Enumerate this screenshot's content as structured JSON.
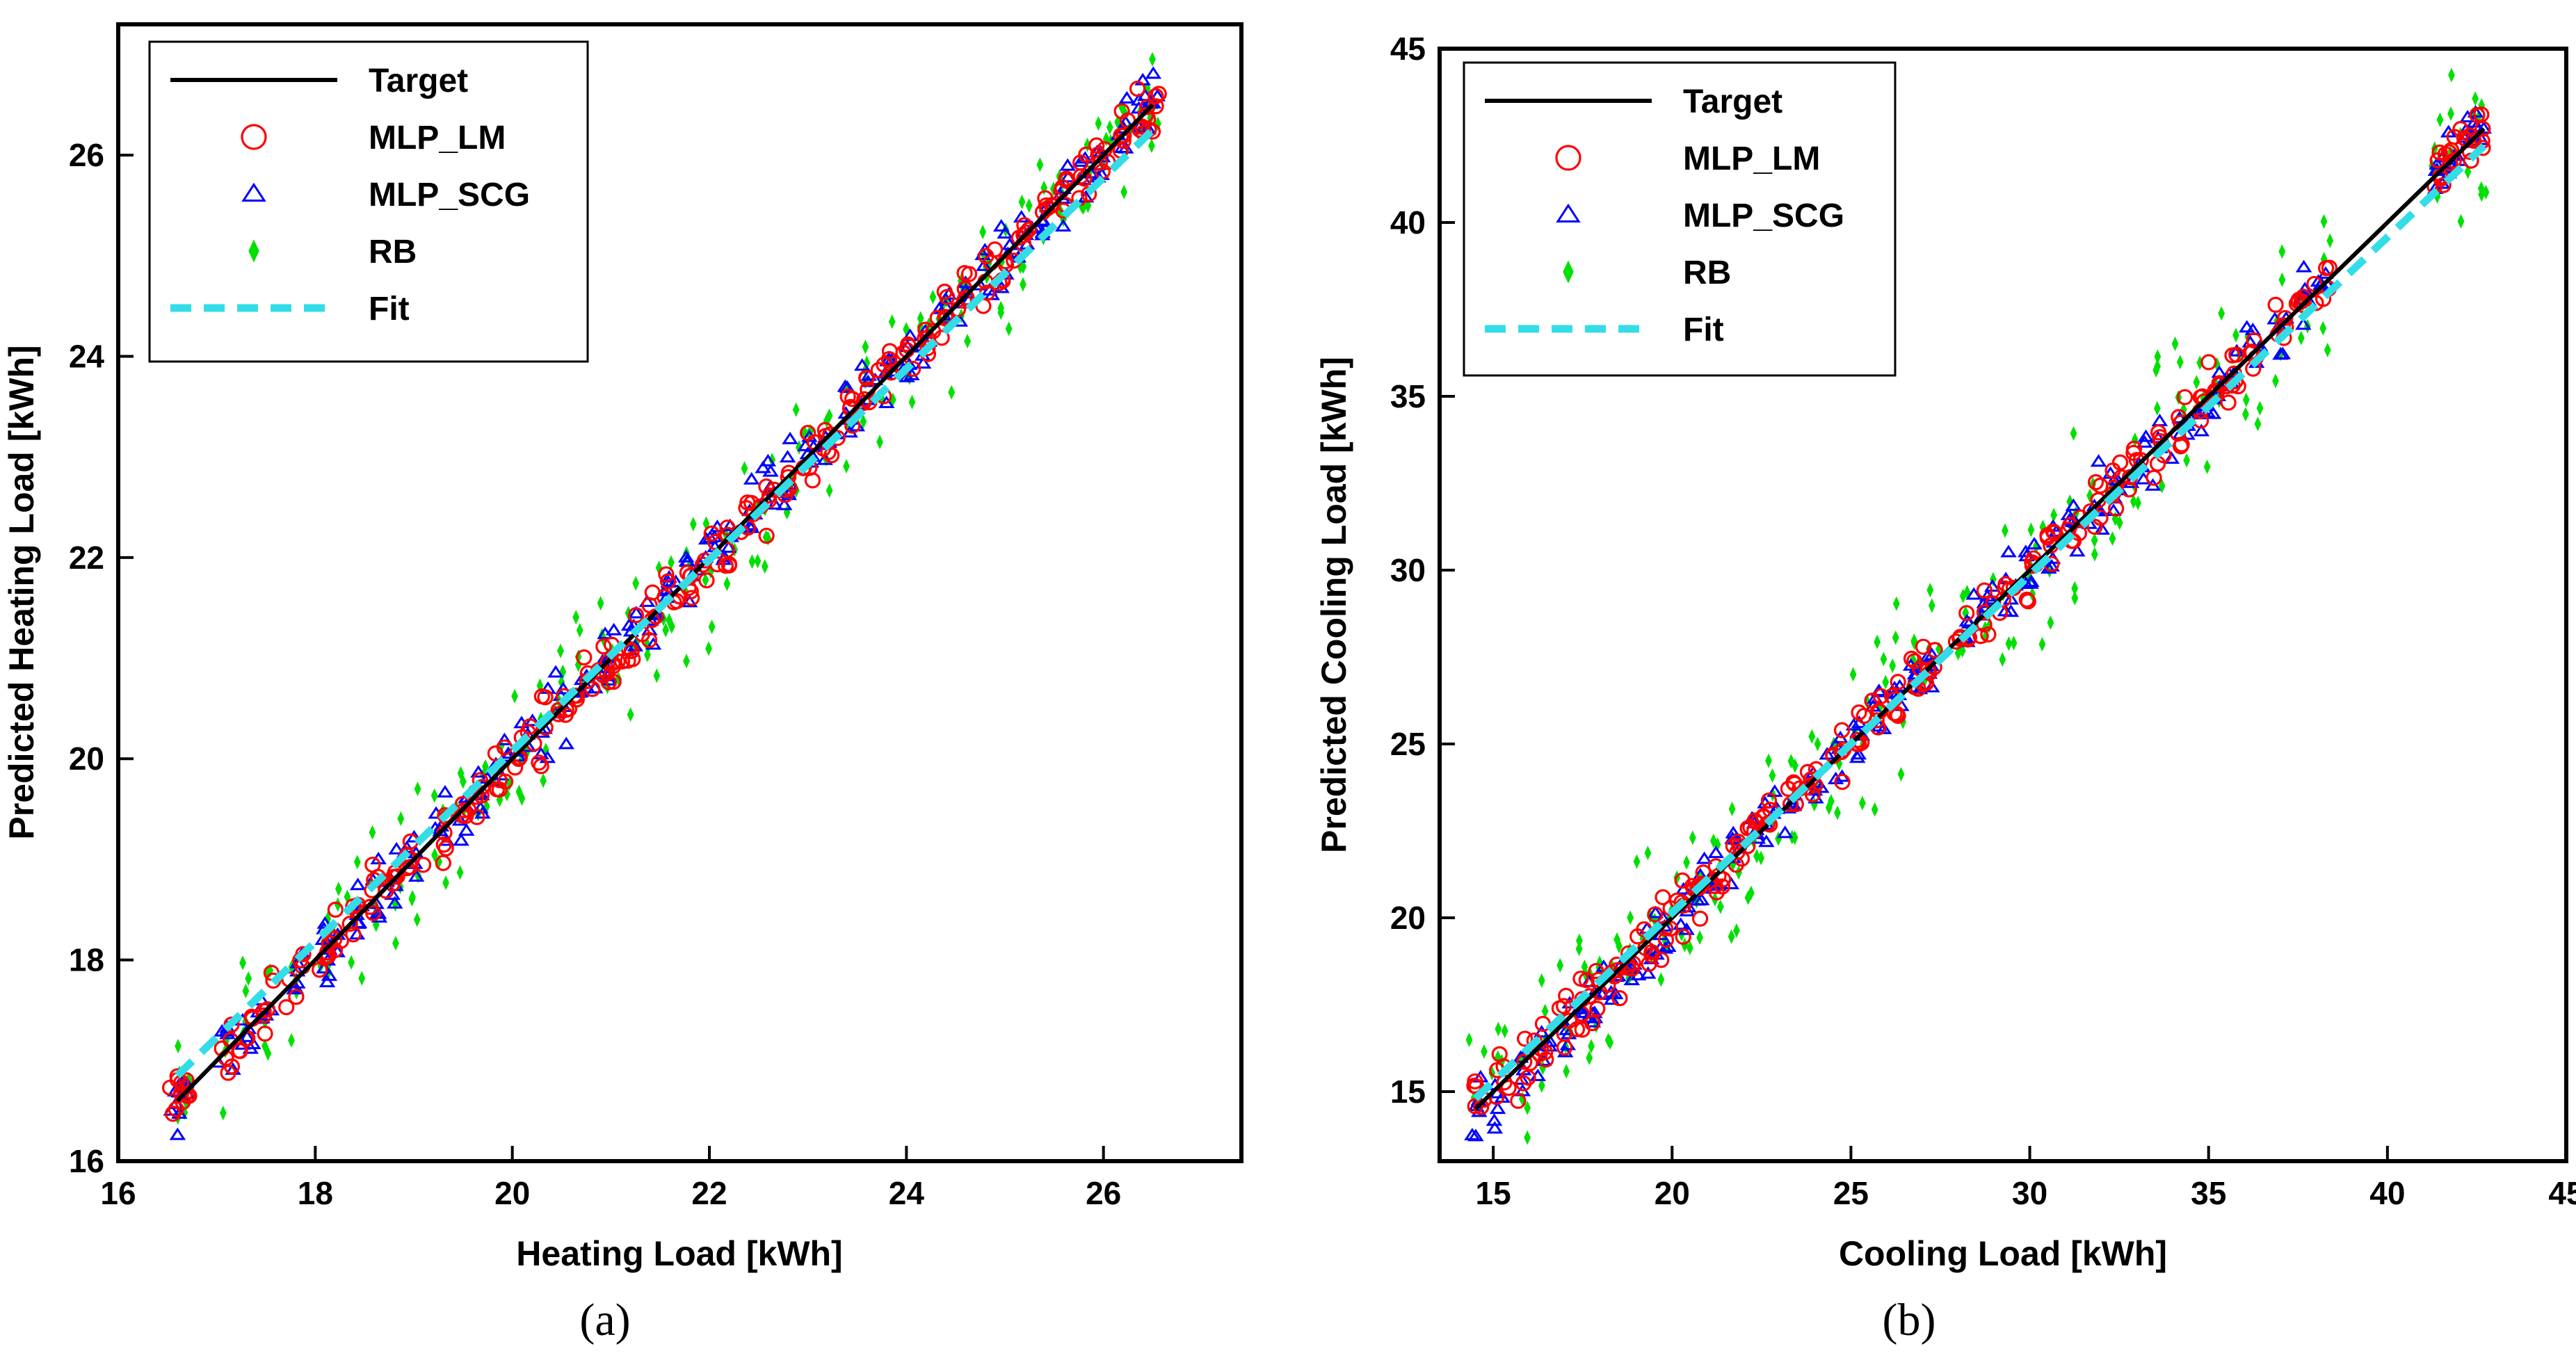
{
  "chart_data": [
    {
      "type": "scatter",
      "title": "",
      "panel_label": "(a)",
      "xlabel": "Heating Load [kWh]",
      "ylabel": "Predicted Heating Load [kWh]",
      "xlim": [
        16,
        27.4
      ],
      "ylim": [
        16,
        27.3
      ],
      "xticks": [
        16,
        18,
        20,
        22,
        24,
        26
      ],
      "yticks": [
        16,
        18,
        20,
        22,
        24,
        26
      ],
      "grid": false,
      "legend_position": "top-left",
      "legend": [
        "Target",
        "MLP_LM",
        "MLP_SCG",
        "RB",
        "Fit"
      ],
      "series": [
        {
          "name": "Target",
          "kind": "line",
          "color": "#000000",
          "x": [
            16.6,
            26.5
          ],
          "y": [
            16.6,
            26.5
          ]
        },
        {
          "name": "MLP_LM",
          "kind": "scatter",
          "marker": "circle",
          "color": "#ff0000",
          "noise": 0.25
        },
        {
          "name": "MLP_SCG",
          "kind": "scatter",
          "marker": "triangle",
          "color": "#0000ff",
          "noise": 0.28
        },
        {
          "name": "RB",
          "kind": "scatter",
          "marker": "diamond",
          "color": "#00e000",
          "noise": 0.55
        },
        {
          "name": "Fit",
          "kind": "dashed-line",
          "color": "#33dde8",
          "x": [
            16.6,
            26.5
          ],
          "y": [
            16.85,
            26.25
          ]
        }
      ],
      "sample_x": [
        16.6,
        16.7,
        17.1,
        17.3,
        17.5,
        17.8,
        18.1,
        18.2,
        18.4,
        18.6,
        18.8,
        19.0,
        19.3,
        19.5,
        19.7,
        19.9,
        20.1,
        20.3,
        20.5,
        20.7,
        20.9,
        21.0,
        21.2,
        21.4,
        21.6,
        21.8,
        22.0,
        22.2,
        22.4,
        22.6,
        22.8,
        23.0,
        23.2,
        23.4,
        23.6,
        23.8,
        24.0,
        24.2,
        24.4,
        24.6,
        24.8,
        25.0,
        25.2,
        25.4,
        25.6,
        25.8,
        26.0,
        26.2,
        26.4,
        26.5
      ]
    },
    {
      "type": "scatter",
      "title": "",
      "panel_label": "(b)",
      "xlabel": "Cooling Load [kWh]",
      "ylabel": "Predicted Cooling Load [kWh]",
      "xlim": [
        13.5,
        45
      ],
      "ylim": [
        13,
        45
      ],
      "xticks": [
        15,
        20,
        25,
        30,
        35,
        40,
        45
      ],
      "yticks": [
        15,
        20,
        25,
        30,
        35,
        40,
        45
      ],
      "grid": false,
      "legend_position": "top-left",
      "legend": [
        "Target",
        "MLP_LM",
        "MLP_SCG",
        "RB",
        "Fit"
      ],
      "series": [
        {
          "name": "Target",
          "kind": "line",
          "color": "#000000",
          "x": [
            14.5,
            42.7
          ],
          "y": [
            14.5,
            42.7
          ]
        },
        {
          "name": "MLP_LM",
          "kind": "scatter",
          "marker": "circle",
          "color": "#ff0000",
          "noise": 0.7
        },
        {
          "name": "MLP_SCG",
          "kind": "scatter",
          "marker": "triangle",
          "color": "#0000ff",
          "noise": 0.8
        },
        {
          "name": "RB",
          "kind": "scatter",
          "marker": "diamond",
          "color": "#00e000",
          "noise": 2.0
        },
        {
          "name": "Fit",
          "kind": "dashed-line",
          "color": "#33dde8",
          "x": [
            14.5,
            42.7
          ],
          "y": [
            14.8,
            42.2
          ]
        }
      ],
      "sample_x": [
        14.6,
        15.2,
        15.9,
        16.4,
        17.0,
        17.5,
        17.9,
        18.4,
        18.9,
        19.4,
        19.8,
        20.3,
        20.8,
        21.3,
        21.8,
        22.3,
        22.8,
        23.4,
        24.0,
        24.6,
        25.2,
        25.8,
        26.3,
        26.8,
        27.2,
        28.2,
        28.8,
        29.4,
        30.0,
        30.6,
        31.2,
        31.8,
        32.4,
        33.0,
        33.6,
        34.2,
        34.8,
        35.3,
        35.8,
        36.3,
        37.0,
        37.6,
        38.2,
        41.4,
        41.8,
        42.2,
        42.6
      ]
    }
  ]
}
